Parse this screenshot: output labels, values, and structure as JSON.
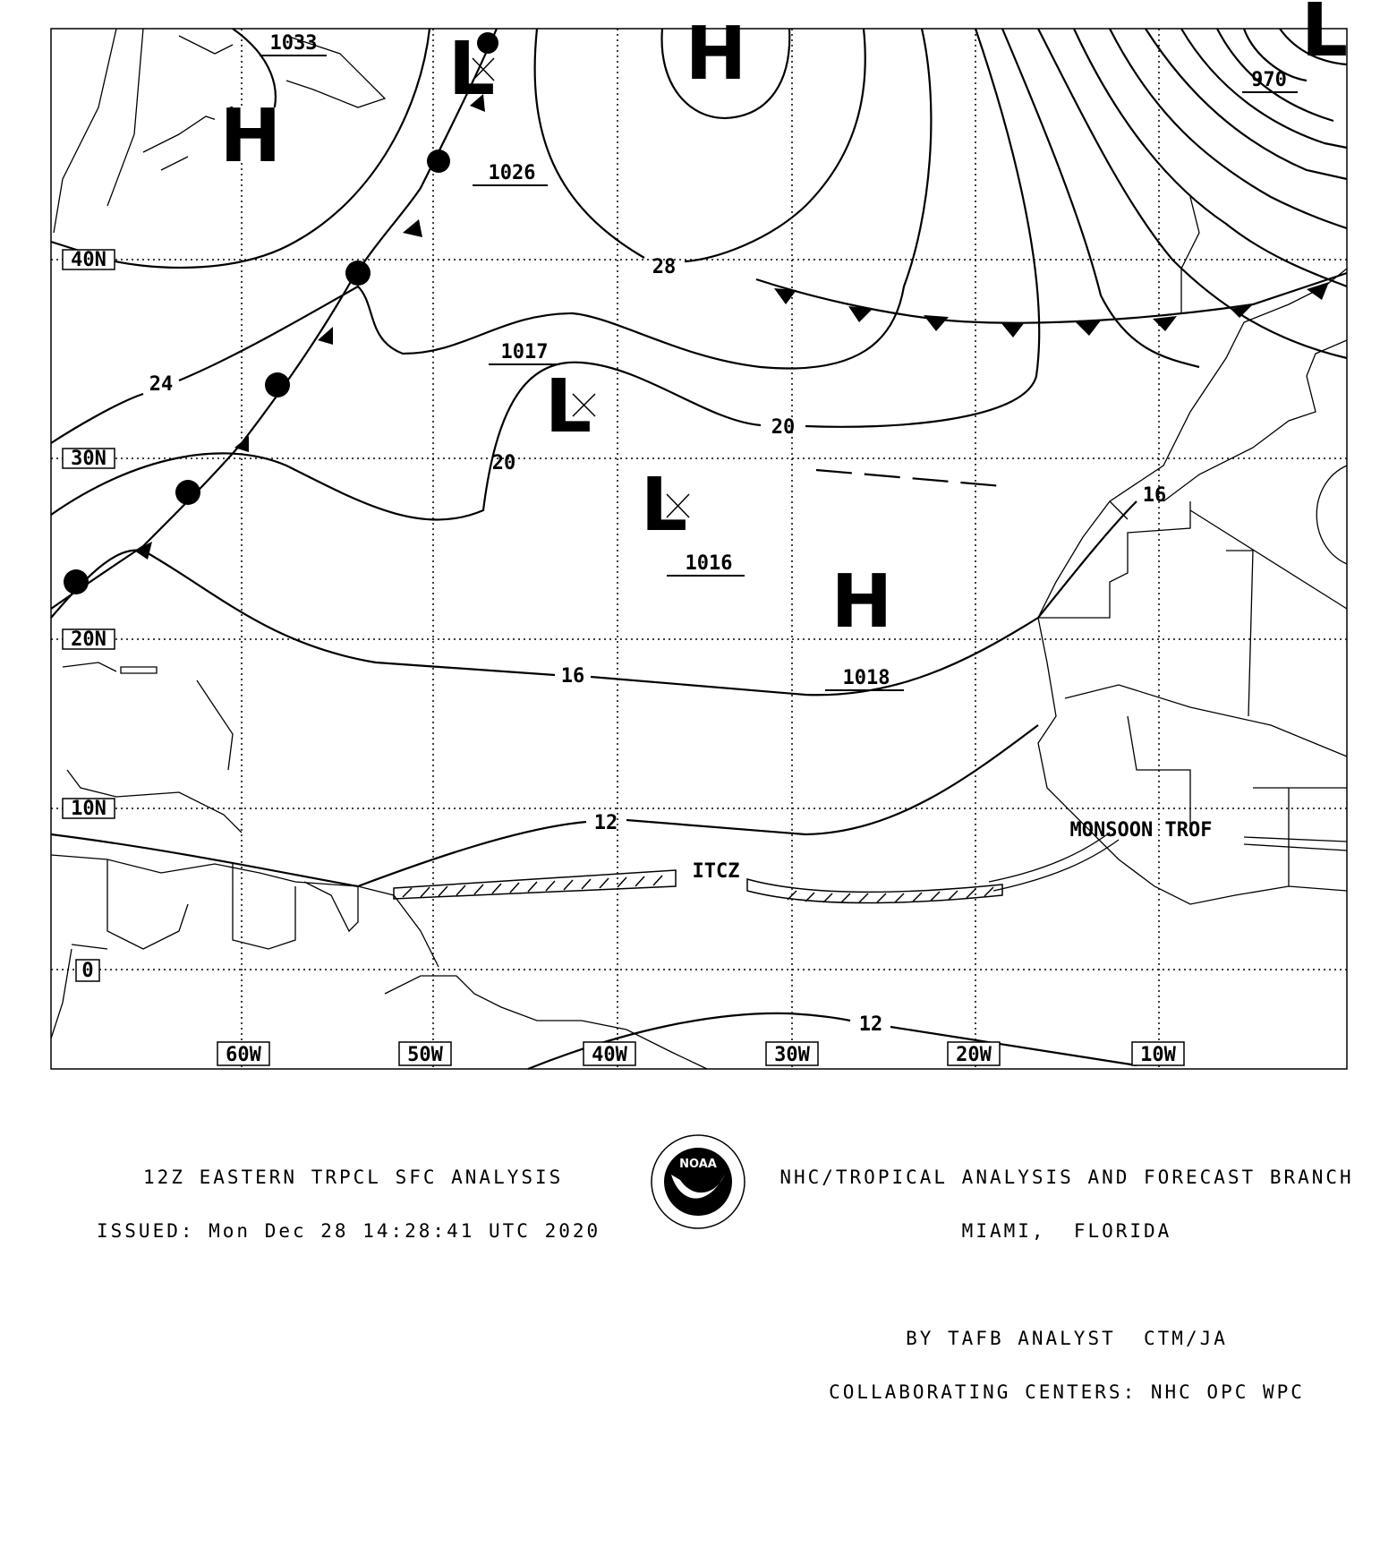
{
  "map": {
    "latitude_labels": [
      "40N",
      "30N",
      "20N",
      "10N",
      "0"
    ],
    "longitude_labels": [
      "60W",
      "50W",
      "40W",
      "30W",
      "20W",
      "10W"
    ],
    "pressure_centers": [
      {
        "type": "H",
        "value": "1033"
      },
      {
        "type": "L",
        "value": ""
      },
      {
        "type": "H",
        "value": ""
      },
      {
        "type": "L",
        "value": "1017"
      },
      {
        "type": "L",
        "value": "1016"
      },
      {
        "type": "H",
        "value": "1018"
      },
      {
        "type": "L",
        "value": "970"
      }
    ],
    "other_pressure_labels": [
      "1026"
    ],
    "isobar_labels": [
      "28",
      "24",
      "20",
      "20",
      "16",
      "16",
      "12",
      "12"
    ],
    "features": {
      "itcz": "ITCZ",
      "monsoon": "MONSOON TROF"
    }
  },
  "footer": {
    "left_line1": "12Z EASTERN TRPCL SFC ANALYSIS",
    "left_line2": "ISSUED: Mon Dec 28 14:28:41 UTC 2020",
    "right_line1": "NHC/TROPICAL ANALYSIS AND FORECAST BRANCH",
    "right_line2": "MIAMI,  FLORIDA",
    "right_line3": "BY TAFB ANALYST  CTM/JA",
    "right_line4": "COLLABORATING CENTERS: NHC OPC WPC",
    "logo_text": "NOAA"
  }
}
